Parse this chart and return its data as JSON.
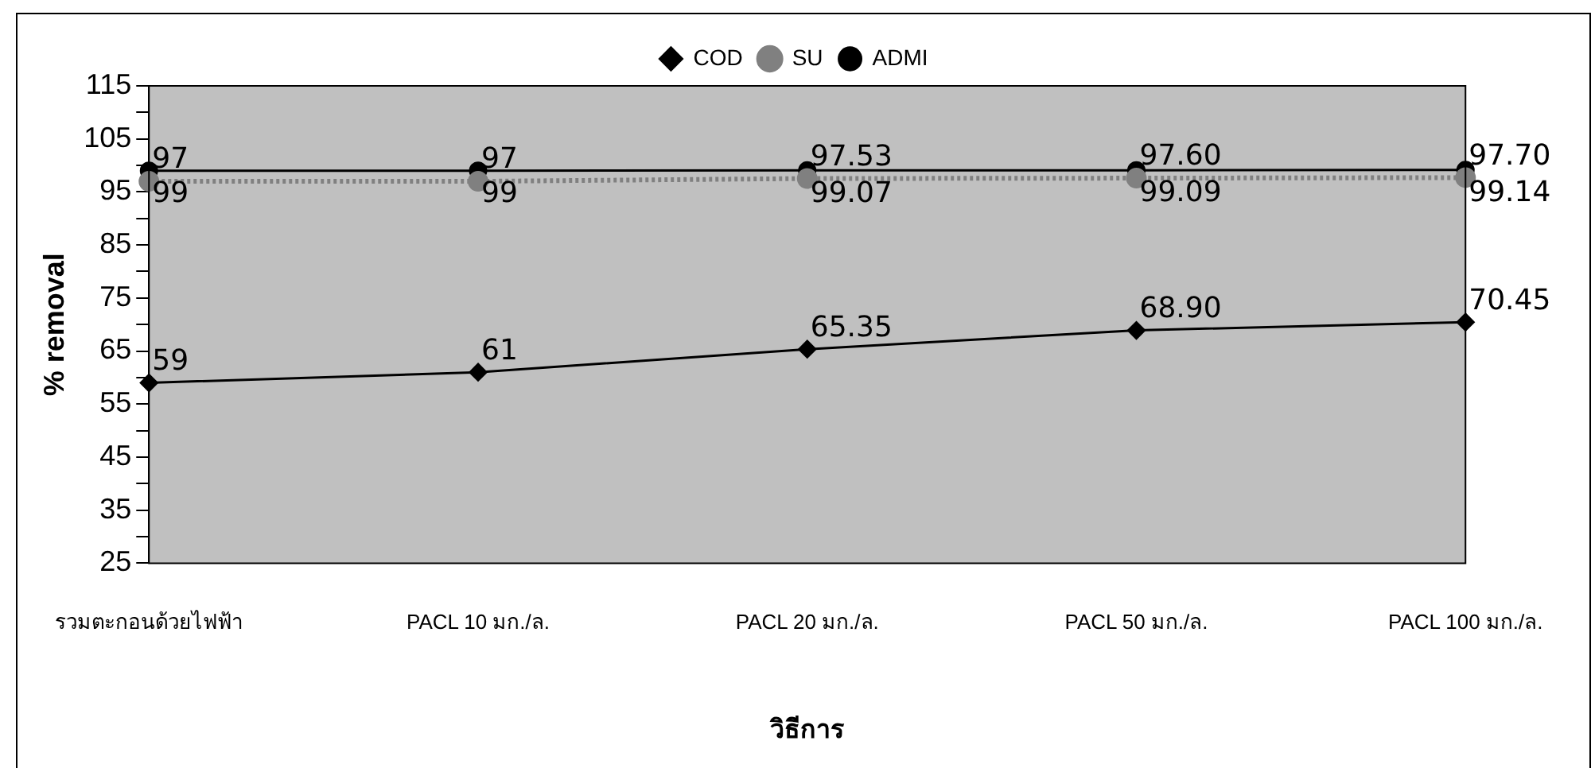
{
  "chart_data": {
    "type": "line",
    "xlabel": "วิธีการ",
    "ylabel": "% removal",
    "categories": [
      "รวมตะกอนด้วยไฟฟ้า",
      "PACL 10 มก./ล.",
      "PACL 20 มก./ล.",
      "PACL 50 มก./ล.",
      "PACL 100 มก./ล."
    ],
    "series": [
      {
        "name": "COD",
        "color": "#000000",
        "marker": "diamond",
        "line_style": "solid",
        "values": [
          59,
          61,
          65.35,
          68.9,
          70.45
        ],
        "value_labels": [
          "59",
          "61",
          "65.35",
          "68.90",
          "70.45"
        ]
      },
      {
        "name": "SU",
        "color": "#808080",
        "marker": "circle",
        "line_style": "dotted",
        "values": [
          97,
          97,
          97.53,
          97.6,
          97.7
        ],
        "value_labels": [
          "97",
          "97",
          "97.53",
          "97.60",
          "97.70"
        ]
      },
      {
        "name": "ADMI",
        "color": "#000000",
        "marker": "circle",
        "line_style": "solid",
        "values": [
          99,
          99,
          99.07,
          99.09,
          99.14
        ],
        "value_labels": [
          "99",
          "99",
          "99.07",
          "99.09",
          "99.14"
        ]
      }
    ],
    "ylim": [
      25,
      115
    ],
    "yticks": [
      25,
      {
        "value": 30,
        "label": null
      },
      35,
      {
        "value": 40,
        "label": null
      },
      45,
      {
        "value": 50,
        "label": null
      },
      55,
      {
        "value": 60,
        "label": null
      },
      65,
      {
        "value": 70,
        "label": null
      },
      75,
      {
        "value": 80,
        "label": null
      },
      85,
      {
        "value": 90,
        "label": null
      },
      95,
      {
        "value": 100,
        "label": null
      },
      105,
      {
        "value": 110,
        "label": null
      },
      115
    ],
    "grid": false,
    "legend": "top",
    "data_labels": true
  }
}
